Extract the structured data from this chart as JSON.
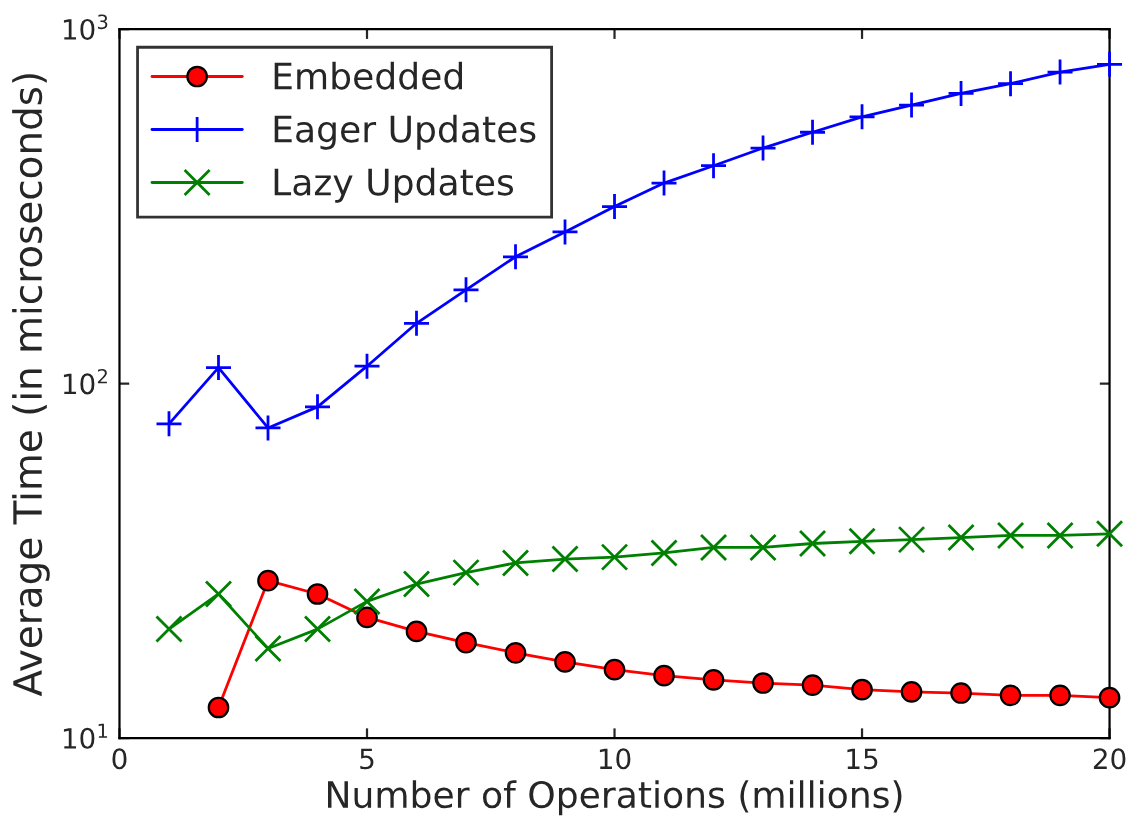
{
  "chart_data": {
    "type": "line",
    "xlabel": "Number of Operations (millions)",
    "ylabel": "Average Time (in microseconds)",
    "x": [
      1,
      2,
      3,
      4,
      5,
      6,
      7,
      8,
      9,
      10,
      11,
      12,
      13,
      14,
      15,
      16,
      17,
      18,
      19,
      20
    ],
    "series": [
      {
        "name": "Embedded",
        "color": "#ff0000",
        "marker": "circle",
        "values": [
          null,
          12.2,
          27.8,
          25.5,
          21.9,
          20.0,
          18.6,
          17.4,
          16.4,
          15.6,
          15.0,
          14.6,
          14.3,
          14.1,
          13.7,
          13.5,
          13.4,
          13.2,
          13.2,
          13.0
        ]
      },
      {
        "name": "Eager Updates",
        "color": "#0000ff",
        "marker": "plus",
        "values": [
          77,
          111,
          75,
          86,
          112,
          148,
          184,
          228,
          268,
          316,
          368,
          412,
          462,
          512,
          566,
          611,
          659,
          702,
          757,
          796
        ]
      },
      {
        "name": "Lazy Updates",
        "color": "#008000",
        "marker": "cross",
        "values": [
          20.3,
          25.5,
          17.9,
          20.3,
          24.3,
          27.2,
          29.3,
          31.2,
          32.0,
          32.4,
          33.3,
          34.5,
          34.5,
          35.4,
          35.9,
          36.3,
          36.8,
          37.3,
          37.3,
          37.7
        ]
      }
    ],
    "log": "y",
    "xlim": [
      0,
      20
    ],
    "xticks": [
      0,
      5,
      10,
      15,
      20
    ],
    "ylim": [
      10,
      1000
    ],
    "yticks": [
      {
        "value": 10,
        "label": "10$^{1}$"
      },
      {
        "value": 100,
        "label": "10$^{2}$"
      },
      {
        "value": 1000,
        "label": "10$^{3}$"
      }
    ],
    "legend": "top left",
    "grid": false
  }
}
